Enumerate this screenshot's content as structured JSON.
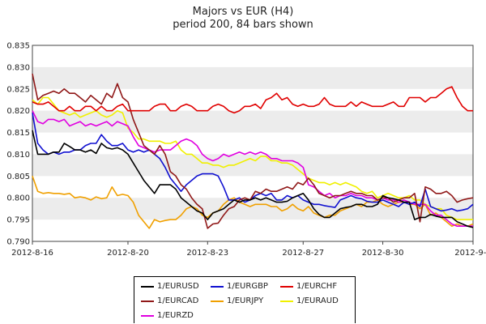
{
  "chart_data": {
    "type": "line",
    "title": "Majors vs EUR (H4)",
    "subtitle": "period 200, 84 bars shown",
    "ylim": [
      0.79,
      0.835
    ],
    "yticks": [
      "0.790",
      "0.795",
      "0.800",
      "0.805",
      "0.810",
      "0.815",
      "0.820",
      "0.825",
      "0.830",
      "0.835"
    ],
    "xticks": [
      {
        "index": 0,
        "label": "2012-8-16"
      },
      {
        "index": 18,
        "label": "2012-8-20"
      },
      {
        "index": 33,
        "label": "2012-8-23"
      },
      {
        "index": 51,
        "label": "2012-8-27"
      },
      {
        "index": 66,
        "label": "2012-8-30"
      },
      {
        "index": 83,
        "label": "2012-9-3"
      }
    ],
    "grid": "alternating horizontal bands",
    "legend_position": "bottom-center",
    "series": [
      {
        "name": "1/EURUSD",
        "color": "#000000",
        "values": [
          0.8155,
          0.81,
          0.81,
          0.81,
          0.8105,
          0.8105,
          0.8125,
          0.8118,
          0.811,
          0.811,
          0.8105,
          0.811,
          0.8102,
          0.8125,
          0.8115,
          0.8112,
          0.8115,
          0.811,
          0.81,
          0.808,
          0.806,
          0.804,
          0.8025,
          0.801,
          0.803,
          0.803,
          0.803,
          0.802,
          0.8,
          0.799,
          0.798,
          0.797,
          0.7965,
          0.795,
          0.7965,
          0.797,
          0.7975,
          0.7985,
          0.7995,
          0.799,
          0.7995,
          0.7995,
          0.8,
          0.7995,
          0.8,
          0.7995,
          0.799,
          0.799,
          0.7992,
          0.8,
          0.8005,
          0.801,
          0.7995,
          0.7975,
          0.7962,
          0.7955,
          0.7955,
          0.7965,
          0.7975,
          0.7978,
          0.798,
          0.7985,
          0.7985,
          0.798,
          0.798,
          0.7985,
          0.8005,
          0.8,
          0.7998,
          0.7995,
          0.799,
          0.799,
          0.795,
          0.7955,
          0.7955,
          0.7962,
          0.7958,
          0.7955,
          0.7955,
          0.7955,
          0.7945,
          0.794,
          0.7935,
          0.7932
        ]
      },
      {
        "name": "1/EURGBP",
        "color": "#1010d0",
        "values": [
          0.8195,
          0.8125,
          0.811,
          0.81,
          0.8105,
          0.81,
          0.8105,
          0.8105,
          0.811,
          0.811,
          0.812,
          0.8125,
          0.8125,
          0.8145,
          0.813,
          0.812,
          0.812,
          0.8125,
          0.811,
          0.8105,
          0.811,
          0.8105,
          0.811,
          0.81,
          0.809,
          0.807,
          0.8045,
          0.803,
          0.8015,
          0.803,
          0.804,
          0.805,
          0.8055,
          0.8055,
          0.8055,
          0.805,
          0.8025,
          0.7995,
          0.7995,
          0.8,
          0.799,
          0.7995,
          0.8005,
          0.801,
          0.8005,
          0.801,
          0.7995,
          0.7995,
          0.8005,
          0.8,
          0.8005,
          0.7995,
          0.799,
          0.7985,
          0.7985,
          0.7982,
          0.798,
          0.7978,
          0.7995,
          0.8,
          0.8005,
          0.8,
          0.7998,
          0.7992,
          0.799,
          0.799,
          0.7995,
          0.799,
          0.7985,
          0.798,
          0.799,
          0.7985,
          0.799,
          0.798,
          0.802,
          0.798,
          0.7975,
          0.797,
          0.7972,
          0.7975,
          0.797,
          0.7972,
          0.7975,
          0.7985
        ]
      },
      {
        "name": "1/EURCHF",
        "color": "#e00000",
        "values": [
          0.822,
          0.8215,
          0.8215,
          0.822,
          0.821,
          0.82,
          0.82,
          0.821,
          0.82,
          0.82,
          0.821,
          0.821,
          0.82,
          0.821,
          0.82,
          0.82,
          0.821,
          0.8215,
          0.82,
          0.82,
          0.82,
          0.82,
          0.82,
          0.821,
          0.8215,
          0.8215,
          0.82,
          0.82,
          0.821,
          0.8215,
          0.821,
          0.82,
          0.82,
          0.82,
          0.821,
          0.8215,
          0.821,
          0.82,
          0.8195,
          0.82,
          0.821,
          0.821,
          0.8215,
          0.8205,
          0.8225,
          0.823,
          0.824,
          0.8225,
          0.823,
          0.8215,
          0.821,
          0.8215,
          0.821,
          0.821,
          0.8215,
          0.823,
          0.8215,
          0.821,
          0.821,
          0.821,
          0.822,
          0.821,
          0.822,
          0.8215,
          0.821,
          0.821,
          0.821,
          0.8215,
          0.822,
          0.821,
          0.821,
          0.823,
          0.823,
          0.823,
          0.822,
          0.823,
          0.823,
          0.824,
          0.825,
          0.8255,
          0.823,
          0.821,
          0.82,
          0.82
        ]
      },
      {
        "name": "1/EURCAD",
        "color": "#901818",
        "values": [
          0.8285,
          0.8225,
          0.8235,
          0.824,
          0.8245,
          0.824,
          0.825,
          0.824,
          0.824,
          0.823,
          0.822,
          0.8235,
          0.8225,
          0.8215,
          0.824,
          0.823,
          0.8262,
          0.823,
          0.822,
          0.818,
          0.815,
          0.812,
          0.811,
          0.81,
          0.812,
          0.81,
          0.806,
          0.805,
          0.803,
          0.802,
          0.8,
          0.7985,
          0.7975,
          0.793,
          0.794,
          0.7942,
          0.796,
          0.7975,
          0.798,
          0.7995,
          0.8,
          0.7995,
          0.8015,
          0.801,
          0.802,
          0.8015,
          0.8015,
          0.802,
          0.8025,
          0.802,
          0.8035,
          0.803,
          0.8045,
          0.803,
          0.801,
          0.8005,
          0.8,
          0.8005,
          0.8005,
          0.801,
          0.8015,
          0.801,
          0.801,
          0.8005,
          0.8005,
          0.7995,
          0.8,
          0.8,
          0.799,
          0.7995,
          0.8,
          0.8,
          0.801,
          0.7945,
          0.8025,
          0.802,
          0.801,
          0.801,
          0.8015,
          0.8005,
          0.799,
          0.7995,
          0.7998,
          0.8
        ]
      },
      {
        "name": "1/EURJPY",
        "color": "#f0a000",
        "values": [
          0.805,
          0.8015,
          0.801,
          0.8012,
          0.801,
          0.801,
          0.8008,
          0.801,
          0.8,
          0.8002,
          0.8,
          0.7995,
          0.8002,
          0.7998,
          0.8,
          0.8025,
          0.8005,
          0.8008,
          0.8005,
          0.799,
          0.796,
          0.7945,
          0.793,
          0.795,
          0.7945,
          0.7948,
          0.795,
          0.795,
          0.796,
          0.7975,
          0.798,
          0.7975,
          0.796,
          0.7955,
          0.7965,
          0.797,
          0.7985,
          0.7995,
          0.8,
          0.799,
          0.7985,
          0.798,
          0.7985,
          0.7985,
          0.7985,
          0.798,
          0.798,
          0.797,
          0.7975,
          0.7985,
          0.7975,
          0.797,
          0.798,
          0.7965,
          0.796,
          0.7955,
          0.796,
          0.796,
          0.797,
          0.7975,
          0.798,
          0.7985,
          0.798,
          0.799,
          0.799,
          0.7995,
          0.7985,
          0.798,
          0.7985,
          0.799,
          0.799,
          0.7985,
          0.7985,
          0.7975,
          0.7985,
          0.796,
          0.7965,
          0.7955,
          0.7945,
          0.7935,
          0.794,
          0.7935,
          0.7935,
          0.794
        ]
      },
      {
        "name": "1/EURAUD",
        "color": "#f0f000",
        "values": [
          0.8225,
          0.8215,
          0.823,
          0.823,
          0.8215,
          0.82,
          0.8195,
          0.819,
          0.8195,
          0.8185,
          0.819,
          0.8195,
          0.82,
          0.819,
          0.8185,
          0.819,
          0.82,
          0.8195,
          0.816,
          0.815,
          0.8135,
          0.8135,
          0.813,
          0.813,
          0.813,
          0.8125,
          0.8125,
          0.813,
          0.811,
          0.81,
          0.81,
          0.809,
          0.808,
          0.808,
          0.8075,
          0.8075,
          0.807,
          0.8075,
          0.8075,
          0.808,
          0.8085,
          0.809,
          0.8085,
          0.8095,
          0.8095,
          0.8085,
          0.8085,
          0.808,
          0.808,
          0.8075,
          0.8065,
          0.8055,
          0.8045,
          0.804,
          0.8035,
          0.8035,
          0.803,
          0.8035,
          0.803,
          0.8035,
          0.803,
          0.8025,
          0.8015,
          0.801,
          0.8015,
          0.8,
          0.8005,
          0.801,
          0.8005,
          0.8,
          0.8,
          0.8005,
          0.7995,
          0.7995,
          0.7985,
          0.798,
          0.7975,
          0.7975,
          0.796,
          0.7955,
          0.795,
          0.795,
          0.795,
          0.795
        ]
      },
      {
        "name": "1/EURZD",
        "color": "#e000e0",
        "values": [
          0.82,
          0.8175,
          0.817,
          0.818,
          0.818,
          0.8175,
          0.818,
          0.8165,
          0.817,
          0.8175,
          0.8165,
          0.817,
          0.8165,
          0.817,
          0.8175,
          0.8165,
          0.8175,
          0.817,
          0.8165,
          0.814,
          0.812,
          0.8115,
          0.811,
          0.8105,
          0.811,
          0.811,
          0.811,
          0.812,
          0.813,
          0.8135,
          0.813,
          0.812,
          0.81,
          0.809,
          0.8085,
          0.809,
          0.81,
          0.8095,
          0.81,
          0.8105,
          0.81,
          0.8105,
          0.81,
          0.8105,
          0.81,
          0.809,
          0.809,
          0.8085,
          0.8085,
          0.8085,
          0.808,
          0.807,
          0.803,
          0.8025,
          0.8015,
          0.8005,
          0.801,
          0.8,
          0.8005,
          0.8005,
          0.801,
          0.8005,
          0.8005,
          0.8,
          0.8,
          0.7995,
          0.8,
          0.7995,
          0.7995,
          0.799,
          0.7995,
          0.799,
          0.7985,
          0.7985,
          0.7985,
          0.797,
          0.796,
          0.796,
          0.795,
          0.794,
          0.7935,
          0.7935,
          0.7935,
          0.7935
        ]
      }
    ]
  }
}
